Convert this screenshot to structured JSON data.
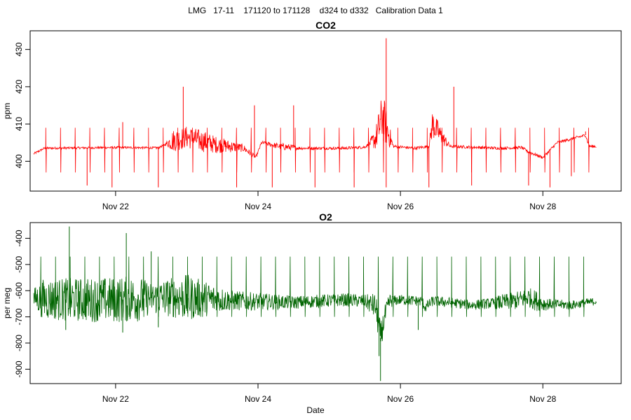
{
  "figure": {
    "suptitle": "LMG   17-11    171120 to 171128    d324 to d332   Calibration Data 1",
    "xlabel": "Date"
  },
  "chart_data": [
    {
      "type": "line",
      "title": "CO2",
      "ylabel": "ppm",
      "series_color": "#ff0000",
      "xlim": [
        20.8,
        29.1
      ],
      "ylim": [
        392,
        435
      ],
      "x_ticks": [
        22,
        24,
        26,
        28
      ],
      "x_tick_labels": [
        "Nov 22",
        "Nov 24",
        "Nov 26",
        "Nov 28"
      ],
      "y_ticks": [
        400,
        410,
        420,
        430
      ],
      "y_tick_labels": [
        "400",
        "410",
        "420",
        "430"
      ],
      "grid": false,
      "x_start": 20.85,
      "x_end": 28.75,
      "baseline": [
        [
          20.85,
          402
        ],
        [
          21.0,
          403.5
        ],
        [
          22.0,
          403.7
        ],
        [
          22.6,
          403.6
        ],
        [
          22.8,
          405.5
        ],
        [
          23.0,
          406.5
        ],
        [
          23.4,
          404.5
        ],
        [
          23.8,
          403.5
        ],
        [
          23.97,
          401
        ],
        [
          24.05,
          405
        ],
        [
          24.3,
          404
        ],
        [
          24.6,
          403.5
        ],
        [
          25.2,
          403.5
        ],
        [
          25.5,
          403.8
        ],
        [
          25.65,
          406
        ],
        [
          25.75,
          412
        ],
        [
          25.82,
          408
        ],
        [
          25.9,
          404
        ],
        [
          26.2,
          403.5
        ],
        [
          26.4,
          404
        ],
        [
          26.45,
          410
        ],
        [
          26.6,
          406
        ],
        [
          26.7,
          404
        ],
        [
          27.4,
          403.5
        ],
        [
          27.7,
          403.7
        ],
        [
          27.8,
          402.5
        ],
        [
          28.0,
          401
        ],
        [
          28.1,
          403
        ],
        [
          28.2,
          405
        ],
        [
          28.5,
          406.5
        ],
        [
          28.6,
          407
        ],
        [
          28.65,
          404
        ]
      ],
      "noise": [
        [
          20.85,
          0.3
        ],
        [
          22.7,
          0.3
        ],
        [
          22.8,
          3
        ],
        [
          23.2,
          3
        ],
        [
          23.8,
          1
        ],
        [
          24.0,
          0.4
        ],
        [
          24.4,
          1
        ],
        [
          24.6,
          0.4
        ],
        [
          25.55,
          0.4
        ],
        [
          25.65,
          3
        ],
        [
          25.75,
          7
        ],
        [
          25.85,
          3
        ],
        [
          25.9,
          0.4
        ],
        [
          26.4,
          0.4
        ],
        [
          26.45,
          4
        ],
        [
          26.6,
          2
        ],
        [
          26.7,
          0.4
        ],
        [
          28.75,
          0.4
        ]
      ],
      "spike_start": 21.02,
      "spike_period": 0.206,
      "spike_up": 409,
      "spike_down": 397,
      "extra_marks": [
        [
          21.6,
          393.5
        ],
        [
          21.95,
          393
        ],
        [
          22.1,
          410.5
        ],
        [
          22.6,
          393
        ],
        [
          22.95,
          420
        ],
        [
          23.7,
          393
        ],
        [
          23.95,
          415
        ],
        [
          24.2,
          393
        ],
        [
          24.5,
          415
        ],
        [
          24.8,
          393
        ],
        [
          25.35,
          393
        ],
        [
          25.8,
          433
        ],
        [
          25.8,
          393
        ],
        [
          26.4,
          393
        ],
        [
          26.75,
          420
        ],
        [
          27.0,
          393.5
        ],
        [
          27.8,
          393.5
        ],
        [
          28.1,
          393
        ],
        [
          28.4,
          396
        ],
        [
          28.6,
          408
        ]
      ]
    },
    {
      "type": "line",
      "title": "O2",
      "ylabel": "per meg",
      "series_color": "#006400",
      "xlim": [
        20.8,
        29.1
      ],
      "ylim": [
        -955,
        -340
      ],
      "x_ticks": [
        22,
        24,
        26,
        28
      ],
      "x_tick_labels": [
        "Nov 22",
        "Nov 24",
        "Nov 26",
        "Nov 28"
      ],
      "y_ticks": [
        -900,
        -800,
        -700,
        -600,
        -500,
        -400
      ],
      "y_tick_labels": [
        "-900",
        "-800",
        "-700",
        "-600",
        "-500",
        "-400"
      ],
      "grid": false,
      "x_start": 20.85,
      "x_end": 28.75,
      "baseline": [
        [
          20.85,
          -630
        ],
        [
          21.5,
          -635
        ],
        [
          22.0,
          -635
        ],
        [
          22.8,
          -625
        ],
        [
          23.2,
          -630
        ],
        [
          23.8,
          -640
        ],
        [
          24.5,
          -645
        ],
        [
          25.2,
          -635
        ],
        [
          25.5,
          -640
        ],
        [
          25.65,
          -660
        ],
        [
          25.72,
          -780
        ],
        [
          25.78,
          -700
        ],
        [
          25.85,
          -640
        ],
        [
          26.0,
          -635
        ],
        [
          26.3,
          -640
        ],
        [
          26.35,
          -665
        ],
        [
          26.45,
          -640
        ],
        [
          26.7,
          -645
        ],
        [
          27.0,
          -655
        ],
        [
          27.4,
          -645
        ],
        [
          27.6,
          -640
        ],
        [
          27.8,
          -625
        ],
        [
          28.0,
          -650
        ],
        [
          28.4,
          -655
        ],
        [
          28.75,
          -640
        ]
      ],
      "noise": [
        [
          20.85,
          40
        ],
        [
          21.0,
          80
        ],
        [
          22.3,
          90
        ],
        [
          22.5,
          60
        ],
        [
          23.0,
          90
        ],
        [
          23.6,
          40
        ],
        [
          24.5,
          25
        ],
        [
          25.5,
          25
        ],
        [
          25.7,
          60
        ],
        [
          25.9,
          20
        ],
        [
          26.5,
          20
        ],
        [
          27.3,
          20
        ],
        [
          27.4,
          30
        ],
        [
          27.9,
          40
        ],
        [
          28.1,
          20
        ],
        [
          28.75,
          15
        ]
      ],
      "spike_start": 20.95,
      "spike_period": 0.206,
      "spike_up": -470,
      "spike_down": -700,
      "extra_marks": [
        [
          21.35,
          -355
        ],
        [
          22.15,
          -380
        ],
        [
          22.5,
          -450
        ],
        [
          25.72,
          -945
        ],
        [
          25.7,
          -850
        ],
        [
          21.3,
          -750
        ],
        [
          22.1,
          -760
        ],
        [
          22.6,
          -740
        ],
        [
          26.25,
          -750
        ]
      ]
    }
  ]
}
